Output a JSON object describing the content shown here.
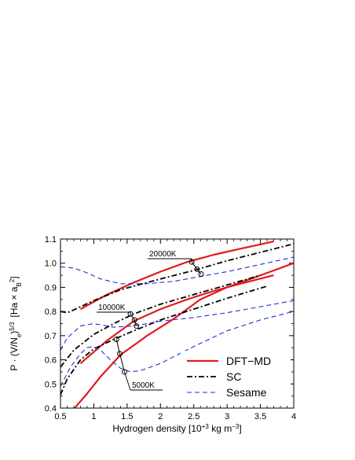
{
  "chart_data": {
    "type": "line",
    "xlabel": "Hydrogen density [10",
    "xlabel_sup": "+3",
    "xlabel_unit": " kg m",
    "xlabel_unit_sup": "−3",
    "xlabel_close": "]",
    "ylabel_main": "P · (V/N",
    "ylabel_sub_e": "e",
    "ylabel_close": ")",
    "ylabel_exp": "5/3",
    "ylabel_units_open": "[Ha × a",
    "ylabel_sub_B": "B",
    "ylabel_units_exp": "2",
    "ylabel_units_close": "]",
    "xlim": [
      0.5,
      4
    ],
    "ylim": [
      0.4,
      1.1
    ],
    "xticks": [
      "0.5",
      "1",
      "1.5",
      "2",
      "2.5",
      "3",
      "3.5",
      "4"
    ],
    "yticks": [
      "0.4",
      "0.5",
      "0.6",
      "0.7",
      "0.8",
      "0.9",
      "1.0",
      "1.1"
    ],
    "colors": {
      "dft": "#e31a1c",
      "sc": "#000000",
      "sesame": "#1f2fd6"
    },
    "legend": {
      "position": "lower-right",
      "entries": [
        {
          "label": "DFT−MD",
          "style": "dft"
        },
        {
          "label": "SC",
          "style": "sc"
        },
        {
          "label": "Sesame",
          "style": "sesame"
        }
      ]
    },
    "annotations": [
      {
        "text": "20000K",
        "temperature": 20000
      },
      {
        "text": "10000K",
        "temperature": 10000
      },
      {
        "text": "5000K",
        "temperature": 5000
      }
    ],
    "series": [
      {
        "style": "dft",
        "temperature": 20000,
        "x": [
          0.8,
          1.2,
          1.6,
          2.0,
          2.4,
          2.8,
          3.2,
          3.7
        ],
        "y": [
          0.81,
          0.87,
          0.92,
          0.965,
          1.005,
          1.035,
          1.06,
          1.09
        ]
      },
      {
        "style": "dft",
        "temperature": 10000,
        "x": [
          0.8,
          1.2,
          1.6,
          2.0,
          2.4,
          2.8,
          3.2,
          3.7
        ],
        "y": [
          0.585,
          0.68,
          0.76,
          0.81,
          0.85,
          0.885,
          0.915,
          0.95
        ]
      },
      {
        "style": "dft",
        "temperature": 5000,
        "x": [
          0.65,
          0.9,
          1.1,
          1.4,
          1.8,
          2.2,
          2.6,
          3.0,
          3.5,
          4.0
        ],
        "y": [
          0.38,
          0.46,
          0.53,
          0.62,
          0.7,
          0.77,
          0.85,
          0.9,
          0.95,
          1.0
        ]
      },
      {
        "style": "sc",
        "temperature": 20000,
        "x": [
          0.5,
          0.6,
          0.65,
          0.8,
          1.0,
          1.4,
          2.0,
          2.5,
          3.0,
          3.5,
          4.0
        ],
        "y": [
          0.8,
          0.795,
          0.8,
          0.82,
          0.845,
          0.89,
          0.935,
          0.97,
          1.01,
          1.045,
          1.08
        ]
      },
      {
        "style": "sc",
        "temperature": 10000,
        "x": [
          0.5,
          0.7,
          1.0,
          1.3,
          1.6,
          2.0,
          2.5,
          3.0,
          3.5
        ],
        "y": [
          0.57,
          0.64,
          0.705,
          0.75,
          0.79,
          0.83,
          0.87,
          0.91,
          0.95
        ]
      },
      {
        "style": "sc",
        "temperature": 5000,
        "x": [
          0.5,
          0.6,
          0.8,
          1.0,
          1.3,
          1.6,
          2.0,
          2.5,
          3.0,
          3.6
        ],
        "y": [
          0.455,
          0.52,
          0.6,
          0.645,
          0.685,
          0.72,
          0.765,
          0.81,
          0.855,
          0.905
        ]
      },
      {
        "style": "sesame",
        "temperature": 20000,
        "x": [
          0.5,
          0.7,
          0.9,
          1.1,
          1.4,
          1.8,
          2.2,
          2.6,
          3.0,
          3.5,
          4.0
        ],
        "y": [
          0.985,
          0.98,
          0.96,
          0.935,
          0.915,
          0.915,
          0.925,
          0.945,
          0.965,
          0.995,
          1.025
        ]
      },
      {
        "style": "sesame",
        "temperature": 10000,
        "x": [
          0.5,
          0.6,
          0.8,
          1.0,
          1.3,
          1.6,
          2.0,
          2.5,
          3.0,
          3.5,
          4.0
        ],
        "y": [
          0.64,
          0.69,
          0.74,
          0.75,
          0.735,
          0.74,
          0.76,
          0.775,
          0.795,
          0.82,
          0.845
        ]
      },
      {
        "style": "sesame",
        "temperature": 5000,
        "x": [
          0.5,
          0.65,
          0.8,
          0.9,
          1.0,
          1.1,
          1.25,
          1.4,
          1.55,
          1.7,
          2.0,
          2.5,
          3.0,
          3.5,
          4.0
        ],
        "y": [
          0.49,
          0.57,
          0.625,
          0.65,
          0.655,
          0.64,
          0.6,
          0.565,
          0.55,
          0.555,
          0.585,
          0.655,
          0.72,
          0.765,
          0.8
        ]
      }
    ],
    "markers": [
      {
        "temperature": 20000,
        "x": 2.47,
        "y": 1.005
      },
      {
        "temperature": 20000,
        "x": 2.55,
        "y": 0.975
      },
      {
        "temperature": 20000,
        "x": 2.61,
        "y": 0.955
      },
      {
        "temperature": 10000,
        "x": 1.55,
        "y": 0.79
      },
      {
        "temperature": 10000,
        "x": 1.61,
        "y": 0.765
      },
      {
        "temperature": 10000,
        "x": 1.64,
        "y": 0.74
      },
      {
        "temperature": 5000,
        "x": 1.34,
        "y": 0.685
      },
      {
        "temperature": 5000,
        "x": 1.39,
        "y": 0.625
      },
      {
        "temperature": 5000,
        "x": 1.46,
        "y": 0.55
      }
    ]
  }
}
